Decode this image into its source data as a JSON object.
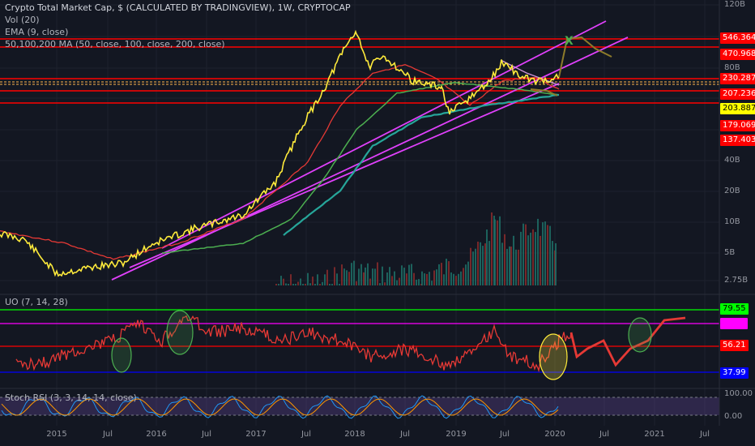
{
  "header": {
    "title": "Crypto Total Market Cap, $ (CALCULATED BY TRADINGVIEW), 1W, CRYPTOCAP",
    "vol": "Vol (20)",
    "ema": "EMA (9, close)",
    "ma": "50,100,200 MA (50, close, 100, close, 200, close)"
  },
  "colors": {
    "background": "#131722",
    "price": "#ffeb3b",
    "ema": "#e53935",
    "ma100": "#4caf50",
    "ma200": "#26a69a",
    "channel": "#e040fb",
    "resistance": "#ff0000",
    "support_dotted": "#ffb74d",
    "projection": "#8d7b2a",
    "uo": "#e53935",
    "stoch_k": "#2196f3",
    "stoch_d": "#ff9800"
  },
  "chart_data": [
    {
      "type": "line",
      "title": "Crypto Total Market Cap, $ (CALCULATED BY TRADINGVIEW), 1W, CRYPTOCAP",
      "scale": "log",
      "y_ticks": [
        "120B",
        "80B",
        "40B",
        "20B",
        "10B",
        "5B",
        "2.75B"
      ],
      "x_ticks": [
        "2015",
        "Jul",
        "2016",
        "Jul",
        "2017",
        "Jul",
        "2018",
        "Jul",
        "2019",
        "Jul",
        "2020",
        "Jul",
        "2021",
        "Jul"
      ],
      "price_levels": [
        {
          "label": "546.364B",
          "color": "#ff0000"
        },
        {
          "label": "470.968B",
          "color": "#ff0000"
        },
        {
          "label": "230.287B",
          "color": "#ff0000"
        },
        {
          "label": "207.236B",
          "color": "#ff0000"
        },
        {
          "label": "203.887B",
          "color": "#ffff00"
        },
        {
          "label": "179.069B",
          "color": "#ff0000"
        },
        {
          "label": "137.403B",
          "color": "#ff0000"
        }
      ],
      "marker": "X",
      "grid": true
    },
    {
      "type": "line",
      "title": "UO (7, 14, 28)",
      "levels": [
        {
          "label": "79.55",
          "color": "#00ff00"
        },
        {
          "label": "",
          "color": "#ff00ff"
        },
        {
          "label": "56.21",
          "color": "#ff0000"
        },
        {
          "label": "37.99",
          "color": "#0000ff"
        }
      ]
    },
    {
      "type": "line",
      "title": "Stoch RSI (3, 3, 14, 14, close)",
      "y_ticks": [
        "100.00",
        "0.00"
      ],
      "band": [
        80,
        20
      ]
    }
  ]
}
